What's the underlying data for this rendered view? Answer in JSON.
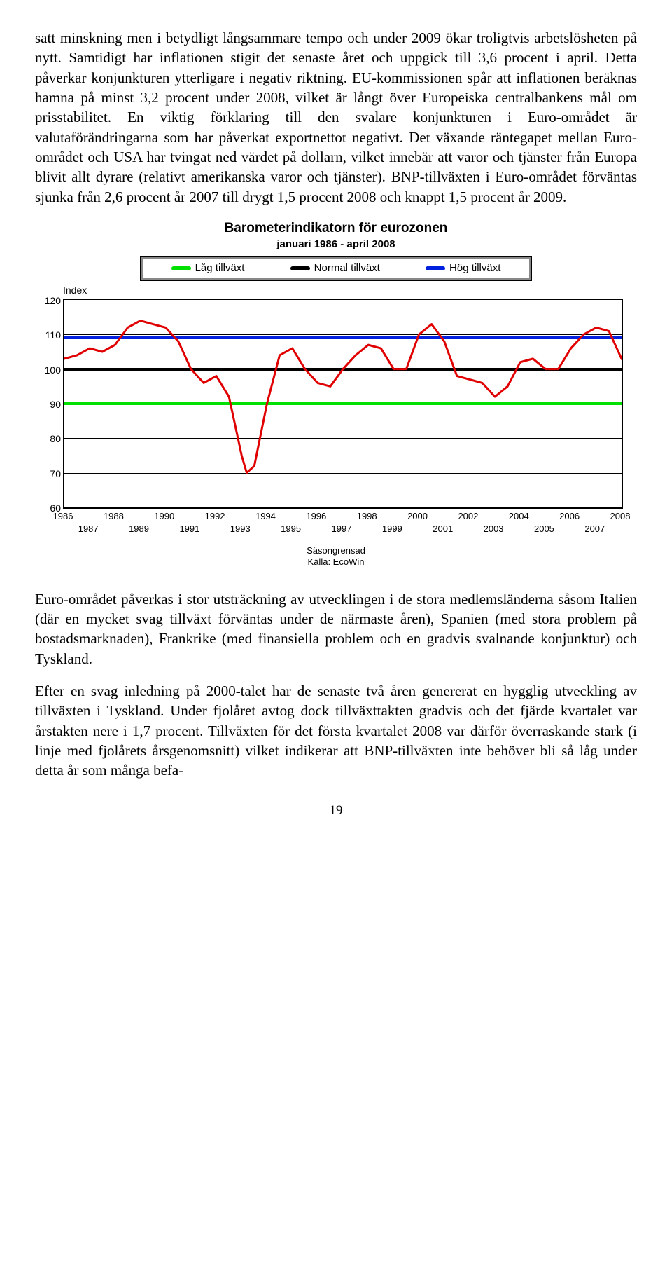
{
  "para1": "satt minskning men i betydligt långsammare tempo och under 2009 ökar troligtvis arbetslösheten på nytt. Samtidigt har inflationen stigit det senaste året och uppgick till 3,6 procent i april. Detta påverkar konjunkturen ytterligare i negativ riktning. EU-kommissionen spår att inflationen beräknas hamna på minst 3,2 procent under 2008, vilket är långt över Europeiska centralbankens mål om prisstabilitet. En viktig förklaring till den svalare konjunkturen i Euro-området är valutaförändringarna som har påverkat exportnettot negativt. Det växande räntegapet mellan Euro-området och USA har tvingat ned värdet på dollarn, vilket innebär att varor och tjänster från Europa blivit allt dyrare (relativt amerikanska varor och tjänster). BNP-tillväxten i Euro-området förväntas sjunka från 2,6 procent år 2007 till drygt 1,5 procent 2008 och knappt 1,5 procent år 2009.",
  "para2": "Euro-området påverkas i stor utsträckning av utvecklingen i de stora medlemsländerna såsom Italien (där en mycket svag tillväxt förväntas under de närmaste åren), Spanien (med stora problem på bostadsmarknaden), Frankrike (med finansiella problem och en gradvis svalnande konjunktur) och Tyskland.",
  "para3": "Efter en svag inledning på 2000-talet har de senaste två åren genererat en hygglig utveckling av tillväxten i Tyskland. Under fjolåret avtog dock tillväxttakten gradvis och det fjärde kvartalet var årstakten nere i 1,7 procent. Tillväxten för det första kvartalet 2008 var därför överraskande stark (i linje med fjolårets årsgenomsnitt) vilket indikerar att BNP-tillväxten inte behöver bli så låg under detta år som många befa-",
  "pageNumber": "19",
  "chart": {
    "title": "Barometerindikatorn för eurozonen",
    "subtitle": "januari 1986 - april 2008",
    "yAxisLabel": "Index",
    "footer1": "Säsongrensad",
    "footer2": "Källa: EcoWin",
    "legend": [
      {
        "label": "Låg tillväxt",
        "color": "#00e000"
      },
      {
        "label": "Normal tillväxt",
        "color": "#000000"
      },
      {
        "label": "Hög tillväxt",
        "color": "#0020e0"
      }
    ],
    "ylim": [
      60,
      120
    ],
    "yticks": [
      60,
      70,
      80,
      90,
      100,
      110,
      120
    ],
    "ref_lines": {
      "low": {
        "y": 90,
        "color": "#00e000"
      },
      "normal": {
        "y": 100,
        "color": "#000000"
      },
      "high": {
        "y": 109,
        "color": "#0020e0"
      }
    },
    "xTop": [
      "1986",
      "1988",
      "1990",
      "1992",
      "1994",
      "1996",
      "1998",
      "2000",
      "2002",
      "2004",
      "2006",
      "2008"
    ],
    "xBot": [
      "1987",
      "1989",
      "1991",
      "1993",
      "1995",
      "1997",
      "1999",
      "2001",
      "2003",
      "2005",
      "2007"
    ],
    "xRange": [
      1986,
      2008
    ],
    "series_color": "#e00000",
    "series_width": 3,
    "grid_color": "#000000",
    "background": "#ffffff",
    "series": [
      [
        1986.0,
        103
      ],
      [
        1986.5,
        104
      ],
      [
        1987.0,
        106
      ],
      [
        1987.5,
        105
      ],
      [
        1988.0,
        107
      ],
      [
        1988.5,
        112
      ],
      [
        1989.0,
        114
      ],
      [
        1989.5,
        113
      ],
      [
        1990.0,
        112
      ],
      [
        1990.5,
        108
      ],
      [
        1991.0,
        100
      ],
      [
        1991.5,
        96
      ],
      [
        1992.0,
        98
      ],
      [
        1992.5,
        92
      ],
      [
        1993.0,
        75
      ],
      [
        1993.2,
        70
      ],
      [
        1993.5,
        72
      ],
      [
        1994.0,
        90
      ],
      [
        1994.5,
        104
      ],
      [
        1995.0,
        106
      ],
      [
        1995.5,
        100
      ],
      [
        1996.0,
        96
      ],
      [
        1996.5,
        95
      ],
      [
        1997.0,
        100
      ],
      [
        1997.5,
        104
      ],
      [
        1998.0,
        107
      ],
      [
        1998.5,
        106
      ],
      [
        1999.0,
        100
      ],
      [
        1999.5,
        100
      ],
      [
        2000.0,
        110
      ],
      [
        2000.5,
        113
      ],
      [
        2001.0,
        108
      ],
      [
        2001.5,
        98
      ],
      [
        2002.0,
        97
      ],
      [
        2002.5,
        96
      ],
      [
        2003.0,
        92
      ],
      [
        2003.5,
        95
      ],
      [
        2004.0,
        102
      ],
      [
        2004.5,
        103
      ],
      [
        2005.0,
        100
      ],
      [
        2005.5,
        100
      ],
      [
        2006.0,
        106
      ],
      [
        2006.5,
        110
      ],
      [
        2007.0,
        112
      ],
      [
        2007.5,
        111
      ],
      [
        2008.0,
        103
      ],
      [
        2008.3,
        100
      ]
    ]
  }
}
